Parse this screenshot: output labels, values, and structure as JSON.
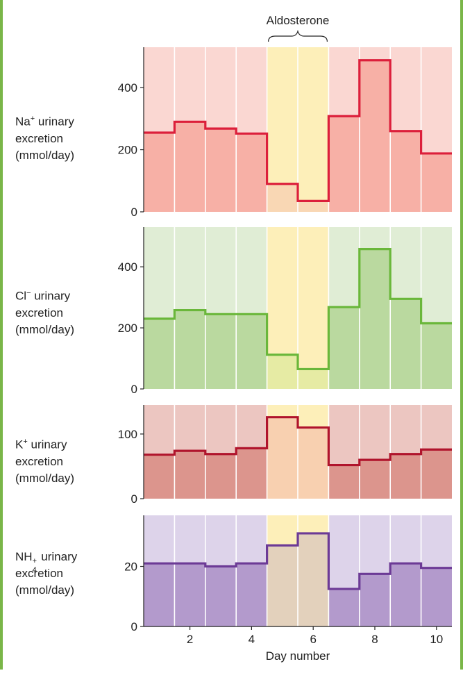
{
  "annotation": {
    "label": "Aldosterone",
    "day_start": 4.5,
    "day_end": 6.5
  },
  "x_axis": {
    "label": "Day number",
    "ticks": [
      2,
      4,
      6,
      8,
      10
    ],
    "range": [
      0.5,
      10.5
    ]
  },
  "panels": [
    {
      "ion": "Na",
      "charge": "+",
      "line1_rest": " urinary",
      "line2": "excretion",
      "line3": "(mmol/day)",
      "colors": {
        "bg": "#fad7d2",
        "fill": "#f7b0a6",
        "line": "#dc1f3b",
        "band_bg": "#fdefb9",
        "band_fill": "#f9d7b4"
      }
    },
    {
      "ion": "Cl",
      "charge": "−",
      "line1_rest": " urinary",
      "line2": "excretion",
      "line3": "(mmol/day)",
      "colors": {
        "bg": "#e0edd5",
        "fill": "#bad99f",
        "line": "#6ab73a",
        "band_bg": "#fdefb9",
        "band_fill": "#e6eba4"
      }
    },
    {
      "ion": "K",
      "charge": "+",
      "line1_rest": " urinary",
      "line2": "excretion",
      "line3": "(mmol/day)",
      "colors": {
        "bg": "#ecc6c1",
        "fill": "#dc958d",
        "line": "#b0142c",
        "band_bg": "#fdefb9",
        "band_fill": "#f8d0b0"
      }
    },
    {
      "ion": "NH",
      "sub": "4",
      "charge": "+",
      "line1_rest": " urinary",
      "line2": "excretion",
      "line3": "(mmol/day)",
      "colors": {
        "bg": "#ddd3ea",
        "fill": "#b39acc",
        "line": "#6c3a96",
        "band_bg": "#fdefb9",
        "band_fill": "#e3d1bc"
      }
    }
  ],
  "chart_data": [
    {
      "type": "line",
      "ylabel": "Na+ urinary excretion (mmol/day)",
      "x": [
        1,
        2,
        3,
        4,
        5,
        6,
        7,
        8,
        9,
        10
      ],
      "values": [
        255,
        290,
        268,
        252,
        90,
        35,
        308,
        488,
        260,
        188
      ],
      "ylim": [
        0,
        530
      ],
      "yticks": [
        0,
        200,
        400
      ],
      "grid": true
    },
    {
      "type": "line",
      "ylabel": "Cl− urinary excretion (mmol/day)",
      "x": [
        1,
        2,
        3,
        4,
        5,
        6,
        7,
        8,
        9,
        10
      ],
      "values": [
        230,
        258,
        245,
        245,
        112,
        65,
        268,
        458,
        295,
        215
      ],
      "ylim": [
        0,
        530
      ],
      "yticks": [
        0,
        200,
        400
      ],
      "grid": true
    },
    {
      "type": "line",
      "ylabel": "K+ urinary excretion (mmol/day)",
      "x": [
        1,
        2,
        3,
        4,
        5,
        6,
        7,
        8,
        9,
        10
      ],
      "values": [
        68,
        74,
        69,
        78,
        126,
        110,
        52,
        60,
        69,
        76
      ],
      "ylim": [
        0,
        145
      ],
      "yticks": [
        0,
        100
      ],
      "grid": true
    },
    {
      "type": "line",
      "ylabel": "NH4+ urinary excretion (mmol/day)",
      "x": [
        1,
        2,
        3,
        4,
        5,
        6,
        7,
        8,
        9,
        10
      ],
      "values": [
        21,
        21,
        20,
        21,
        27,
        31,
        12.5,
        17.5,
        21,
        19.5
      ],
      "ylim": [
        0,
        37
      ],
      "yticks": [
        0,
        20
      ],
      "grid": true
    }
  ]
}
